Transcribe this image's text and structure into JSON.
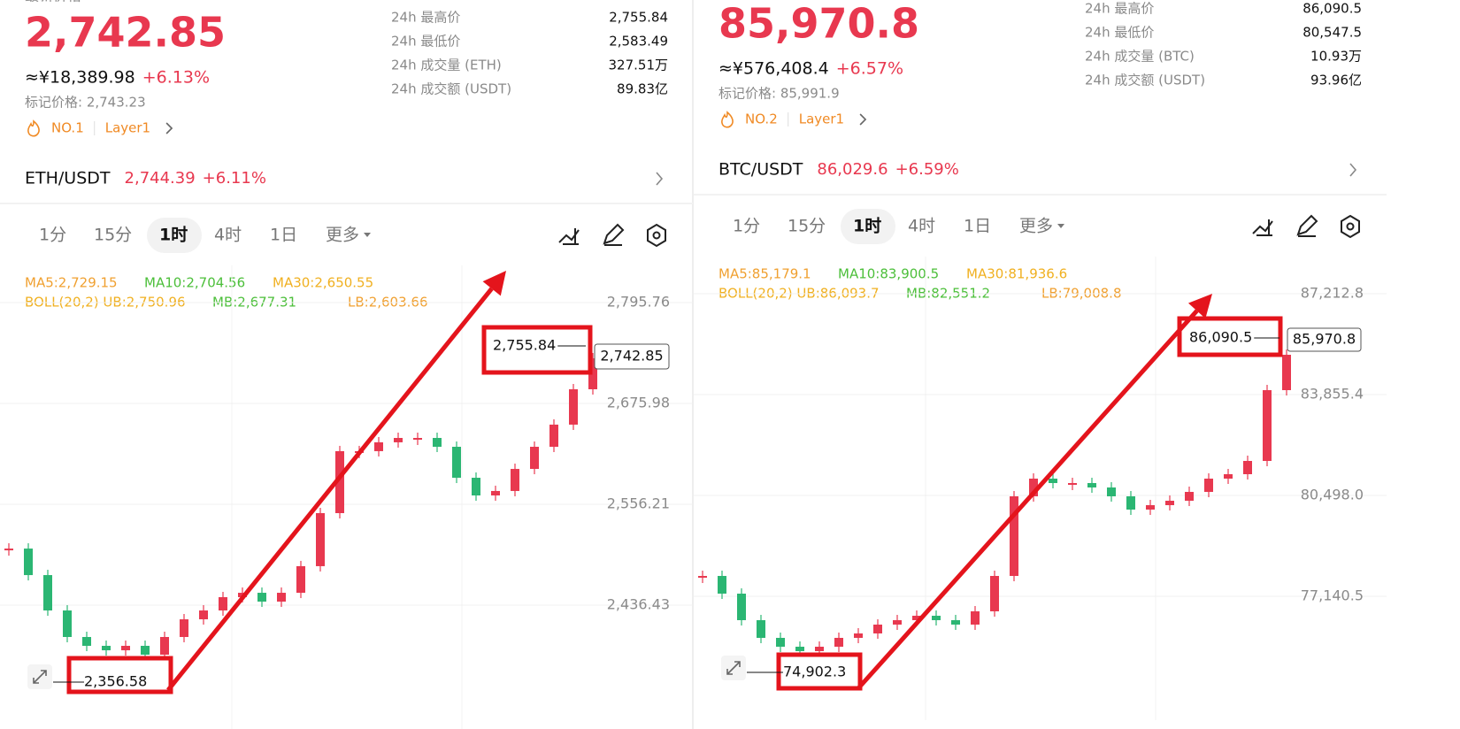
{
  "panels": [
    {
      "header_label": "最新价格",
      "price": "2,742.85",
      "cny": "≈¥18,389.98",
      "change": "+6.13%",
      "mark_price": "标记价格: 2,743.23",
      "rank": "NO.1",
      "tag": "Layer1",
      "stats": [
        {
          "label": "24h 最高价",
          "value": "2,755.84"
        },
        {
          "label": "24h 最低价",
          "value": "2,583.49"
        },
        {
          "label": "24h 成交量 (ETH)",
          "value": "327.51万"
        },
        {
          "label": "24h 成交额 (USDT)",
          "value": "89.83亿"
        }
      ],
      "pair": "ETH/USDT",
      "pair_price": "2,744.39",
      "pair_change": "+6.11%",
      "timeframes": [
        "1分",
        "15分",
        "1时",
        "4时",
        "1日",
        "更多"
      ],
      "ma": [
        "MA5:2,729.15",
        "MA10:2,704.56",
        "MA30:2,650.55"
      ],
      "boll": [
        "BOLL(20,2) UB:2,750.96",
        "MB:2,677.31",
        "LB:2,603.66"
      ],
      "chart": {
        "type": "candlestick",
        "yticks": [
          {
            "value": 2795.76,
            "label": "2,795.76"
          },
          {
            "value": 2675.98,
            "label": "2,675.98"
          },
          {
            "value": 2556.21,
            "label": "2,556.21"
          },
          {
            "value": 2436.43,
            "label": "2,436.43"
          }
        ],
        "closes": [
          2503.6,
          2472.1,
          2430.1,
          2398.6,
          2388.1,
          2382.8,
          2388.1,
          2377.6,
          2398.6,
          2419.6,
          2430.1,
          2445.9,
          2451.1,
          2440.6,
          2451.1,
          2482.7,
          2545.7,
          2619.3,
          2619.3,
          2629.8,
          2635.0,
          2635.0,
          2624.5,
          2587.7,
          2566.7,
          2572.0,
          2598.2,
          2624.5,
          2650.8,
          2692.8,
          2729.6
        ],
        "high_label": "2,755.84",
        "low_label": "2,356.58",
        "last_label": "2,742.85"
      }
    },
    {
      "price": "85,970.8",
      "cny": "≈¥576,408.4",
      "change": "+6.57%",
      "mark_price": "标记价格: 85,991.9",
      "rank": "NO.2",
      "tag": "Layer1",
      "stats": [
        {
          "label": "24h 最高价",
          "value": "86,090.5"
        },
        {
          "label": "24h 最低价",
          "value": "80,547.5"
        },
        {
          "label": "24h 成交量 (BTC)",
          "value": "10.93万"
        },
        {
          "label": "24h 成交额 (USDT)",
          "value": "93.96亿"
        }
      ],
      "pair": "BTC/USDT",
      "pair_price": "86,029.6",
      "pair_change": "+6.59%",
      "timeframes": [
        "1分",
        "15分",
        "1时",
        "4时",
        "1日",
        "更多"
      ],
      "ma": [
        "MA5:85,179.1",
        "MA10:83,900.5",
        "MA30:81,936.6"
      ],
      "boll": [
        "BOLL(20,2) UB:86,093.7",
        "MB:82,551.2",
        "LB:79,008.8"
      ],
      "chart": {
        "type": "candlestick",
        "yticks": [
          {
            "value": 87212.8,
            "label": "87,212.8"
          },
          {
            "value": 83855.4,
            "label": "83,855.4"
          },
          {
            "value": 80498.0,
            "label": "80,498.0"
          },
          {
            "value": 77140.5,
            "label": "77,140.5"
          }
        ],
        "closes": [
          77818.2,
          77229.2,
          76345.7,
          75756.7,
          75462.2,
          75315.0,
          75462.2,
          75756.7,
          75904.0,
          76198.5,
          76345.7,
          76493.0,
          76345.7,
          76198.5,
          76640.2,
          77818.2,
          80468.7,
          81057.7,
          80910.5,
          80910.5,
          80763.2,
          80468.7,
          80027.0,
          80174.2,
          80321.5,
          80616.0,
          81057.7,
          81205.0,
          81646.7,
          84002.7,
          85180.7
        ],
        "high_label": "86,090.5",
        "low_label": "74,902.3",
        "last_label": "85,970.8"
      }
    }
  ]
}
